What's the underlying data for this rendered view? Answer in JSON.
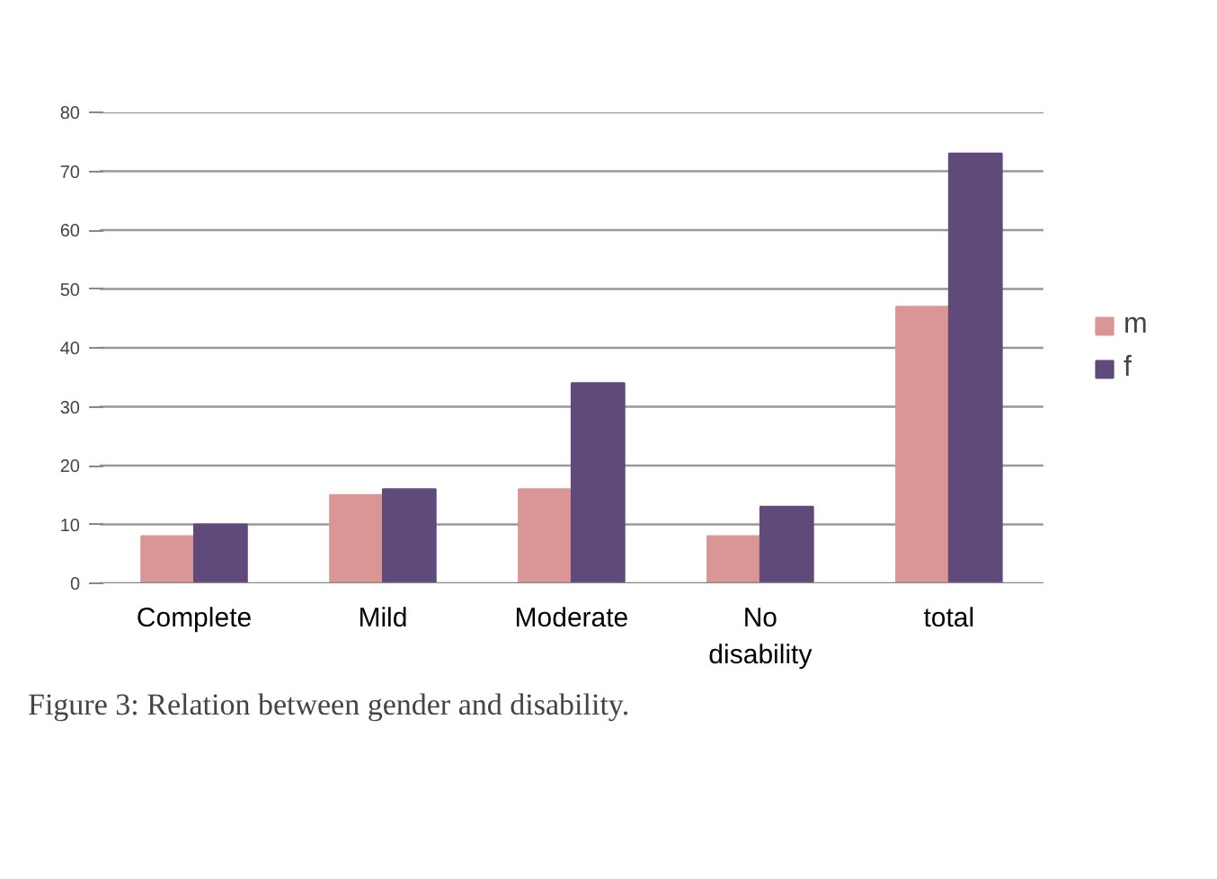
{
  "chart_data": {
    "type": "bar",
    "categories": [
      "Complete",
      "Mild",
      "Moderate",
      "No\ndisability",
      "total"
    ],
    "series": [
      {
        "name": "m",
        "color": "#d99694",
        "values": [
          8,
          15,
          16,
          8,
          47
        ]
      },
      {
        "name": "f",
        "color": "#604a7b",
        "values": [
          10,
          16,
          34,
          13,
          73
        ]
      }
    ],
    "ylim": [
      0,
      80
    ],
    "yticks": [
      0,
      10,
      20,
      30,
      40,
      50,
      60,
      70,
      80
    ],
    "grid": "y",
    "legend": "right",
    "annotations": [
      "Figure 3: Relation between gender and disability."
    ]
  }
}
